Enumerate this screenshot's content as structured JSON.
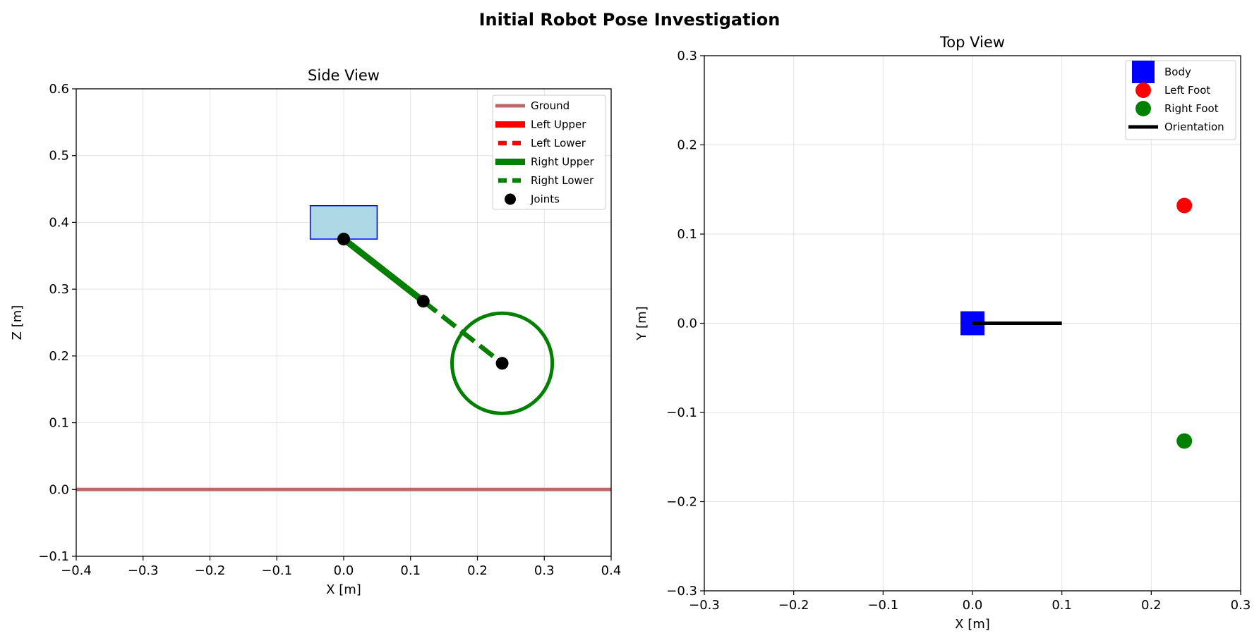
{
  "figure_title": "Initial Robot Pose Investigation",
  "chart_data": [
    {
      "type": "line",
      "title": "Side View",
      "xlabel": "X [m]",
      "ylabel": "Z [m]",
      "xlim": [
        -0.4,
        0.4
      ],
      "ylim": [
        -0.1,
        0.6
      ],
      "xticks": [
        -0.4,
        -0.3,
        -0.2,
        -0.1,
        0.0,
        0.1,
        0.2,
        0.3,
        0.4
      ],
      "yticks": [
        -0.1,
        0.0,
        0.1,
        0.2,
        0.3,
        0.4,
        0.5,
        0.6
      ],
      "xtick_labels": [
        "−0.4",
        "−0.3",
        "−0.2",
        "−0.1",
        "0.0",
        "0.1",
        "0.2",
        "0.3",
        "0.4"
      ],
      "ytick_labels": [
        "−0.1",
        "0.0",
        "0.1",
        "0.2",
        "0.3",
        "0.4",
        "0.5",
        "0.6"
      ],
      "grid": true,
      "legend_position": "upper right",
      "body_rect": {
        "x": [
          -0.05,
          0.05
        ],
        "z": [
          0.375,
          0.425
        ],
        "fill": "#add8e6",
        "edge": "#0000ff"
      },
      "series": [
        {
          "name": "Ground",
          "x": [
            -0.4,
            0.4
          ],
          "y": [
            0.0,
            0.0
          ],
          "color": "#bc6a69",
          "style": "solid"
        },
        {
          "name": "Left Upper",
          "x": [
            0.0,
            0.119
          ],
          "y": [
            0.375,
            0.282
          ],
          "color": "#ff0000",
          "style": "solid"
        },
        {
          "name": "Left Lower",
          "x": [
            0.119,
            0.237
          ],
          "y": [
            0.282,
            0.189
          ],
          "color": "#ff0000",
          "style": "dashed"
        },
        {
          "name": "Right Upper",
          "x": [
            0.0,
            0.119
          ],
          "y": [
            0.375,
            0.282
          ],
          "color": "#008000",
          "style": "solid"
        },
        {
          "name": "Right Lower",
          "x": [
            0.119,
            0.237
          ],
          "y": [
            0.282,
            0.189
          ],
          "color": "#008000",
          "style": "dashed"
        },
        {
          "name": "Joints",
          "x": [
            0.0,
            0.119,
            0.237
          ],
          "y": [
            0.375,
            0.282,
            0.189
          ],
          "color": "#000000",
          "style": "markers"
        }
      ],
      "circle": {
        "center": [
          0.237,
          0.189
        ],
        "radius": 0.075,
        "color": "#008000"
      }
    },
    {
      "type": "scatter",
      "title": "Top View",
      "xlabel": "X [m]",
      "ylabel": "Y [m]",
      "xlim": [
        -0.3,
        0.3
      ],
      "ylim": [
        -0.3,
        0.3
      ],
      "xticks": [
        -0.3,
        -0.2,
        -0.1,
        0.0,
        0.1,
        0.2,
        0.3
      ],
      "yticks": [
        -0.3,
        -0.2,
        -0.1,
        0.0,
        0.1,
        0.2,
        0.3
      ],
      "xtick_labels": [
        "−0.3",
        "−0.2",
        "−0.1",
        "0.0",
        "0.1",
        "0.2",
        "0.3"
      ],
      "ytick_labels": [
        "−0.3",
        "−0.2",
        "−0.1",
        "0.0",
        "0.1",
        "0.2",
        "0.3"
      ],
      "grid": true,
      "legend_position": "upper right",
      "series": [
        {
          "name": "Body",
          "x": [
            0.0
          ],
          "y": [
            0.0
          ],
          "color": "#0000ff",
          "marker": "square"
        },
        {
          "name": "Left Foot",
          "x": [
            0.237
          ],
          "y": [
            0.132
          ],
          "color": "#ff0000",
          "marker": "circle"
        },
        {
          "name": "Right Foot",
          "x": [
            0.237
          ],
          "y": [
            -0.132
          ],
          "color": "#008000",
          "marker": "circle"
        },
        {
          "name": "Orientation",
          "x": [
            0.0,
            0.1
          ],
          "y": [
            0.0,
            0.0
          ],
          "color": "#000000",
          "marker": "line"
        }
      ]
    }
  ]
}
